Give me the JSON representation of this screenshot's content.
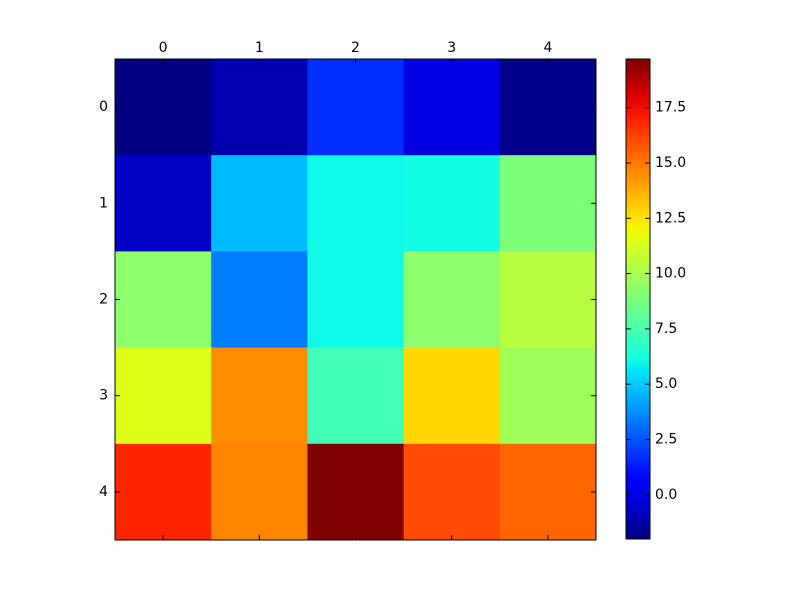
{
  "chart_data": {
    "type": "heatmap",
    "xticks": [
      0,
      1,
      2,
      3,
      4
    ],
    "yticks": [
      0,
      1,
      2,
      3,
      4
    ],
    "values": [
      [
        -2.0,
        -1.1,
        1.7,
        -0.2,
        -1.8
      ],
      [
        -0.7,
        4.7,
        6.0,
        6.1,
        8.9
      ],
      [
        9.3,
        3.4,
        6.0,
        9.3,
        10.4
      ],
      [
        11.5,
        14.5,
        7.3,
        12.8,
        9.8
      ],
      [
        16.9,
        14.7,
        19.7,
        16.0,
        15.4
      ]
    ],
    "colormap": "jet",
    "clim": [
      -2.0,
      19.7
    ],
    "colorbar_ticks": [
      {
        "value": 0,
        "label": "0.0"
      },
      {
        "value": 2.5,
        "label": "2.5"
      },
      {
        "value": 5,
        "label": "5.0"
      },
      {
        "value": 7.5,
        "label": "7.5"
      },
      {
        "value": 10,
        "label": "10.0"
      },
      {
        "value": 12.5,
        "label": "12.5"
      },
      {
        "value": 15,
        "label": "15.0"
      },
      {
        "value": 17.5,
        "label": "17.5"
      }
    ]
  }
}
